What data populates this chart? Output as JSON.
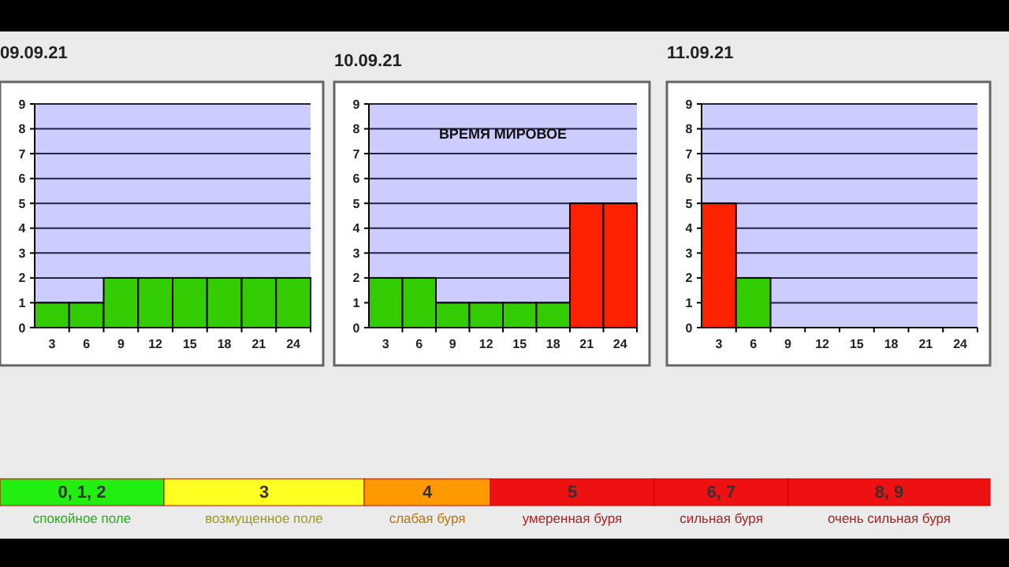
{
  "chart_data": [
    {
      "type": "bar",
      "title": "09.09.21",
      "categories": [
        "3",
        "6",
        "9",
        "12",
        "15",
        "18",
        "21",
        "24"
      ],
      "values": [
        1,
        1,
        2,
        2,
        2,
        2,
        2,
        2
      ],
      "colors": [
        "#33cc00",
        "#33cc00",
        "#33cc00",
        "#33cc00",
        "#33cc00",
        "#33cc00",
        "#33cc00",
        "#33cc00"
      ],
      "ylim": [
        0,
        9
      ],
      "yticks": [
        0,
        1,
        2,
        3,
        4,
        5,
        6,
        7,
        8,
        9
      ],
      "grid": "y"
    },
    {
      "type": "bar",
      "title": "10.09.21",
      "categories": [
        "3",
        "6",
        "9",
        "12",
        "15",
        "18",
        "21",
        "24"
      ],
      "values": [
        2,
        2,
        1,
        1,
        1,
        1,
        5,
        5
      ],
      "colors": [
        "#33cc00",
        "#33cc00",
        "#33cc00",
        "#33cc00",
        "#33cc00",
        "#33cc00",
        "#ff2200",
        "#ff2200"
      ],
      "ylim": [
        0,
        9
      ],
      "yticks": [
        0,
        1,
        2,
        3,
        4,
        5,
        6,
        7,
        8,
        9
      ],
      "grid": "y",
      "annotations": [
        "ВРЕМЯ МИРОВОЕ"
      ]
    },
    {
      "type": "bar",
      "title": "11.09.21",
      "categories": [
        "3",
        "6",
        "9",
        "12",
        "15",
        "18",
        "21",
        "24"
      ],
      "values": [
        5,
        2,
        null,
        null,
        null,
        null,
        null,
        null
      ],
      "colors": [
        "#ff2200",
        "#33cc00",
        null,
        null,
        null,
        null,
        null,
        null
      ],
      "ylim": [
        0,
        9
      ],
      "yticks": [
        0,
        1,
        2,
        3,
        4,
        5,
        6,
        7,
        8,
        9
      ],
      "grid": "y"
    },
    {
      "type": "other",
      "categories": [
        "0, 1, 2",
        "3",
        "4",
        "5",
        "6, 7",
        "8, 9"
      ],
      "colors": [
        "#22ee11",
        "#ffff22",
        "#ff9900",
        "#ee1111",
        "#ee1111",
        "#ee1111"
      ],
      "annotations": [
        "спокойное поле",
        "возмущенное поле",
        "слабая буря",
        "умеренная буря",
        "сильная буря",
        "очень сильная буря"
      ]
    }
  ]
}
